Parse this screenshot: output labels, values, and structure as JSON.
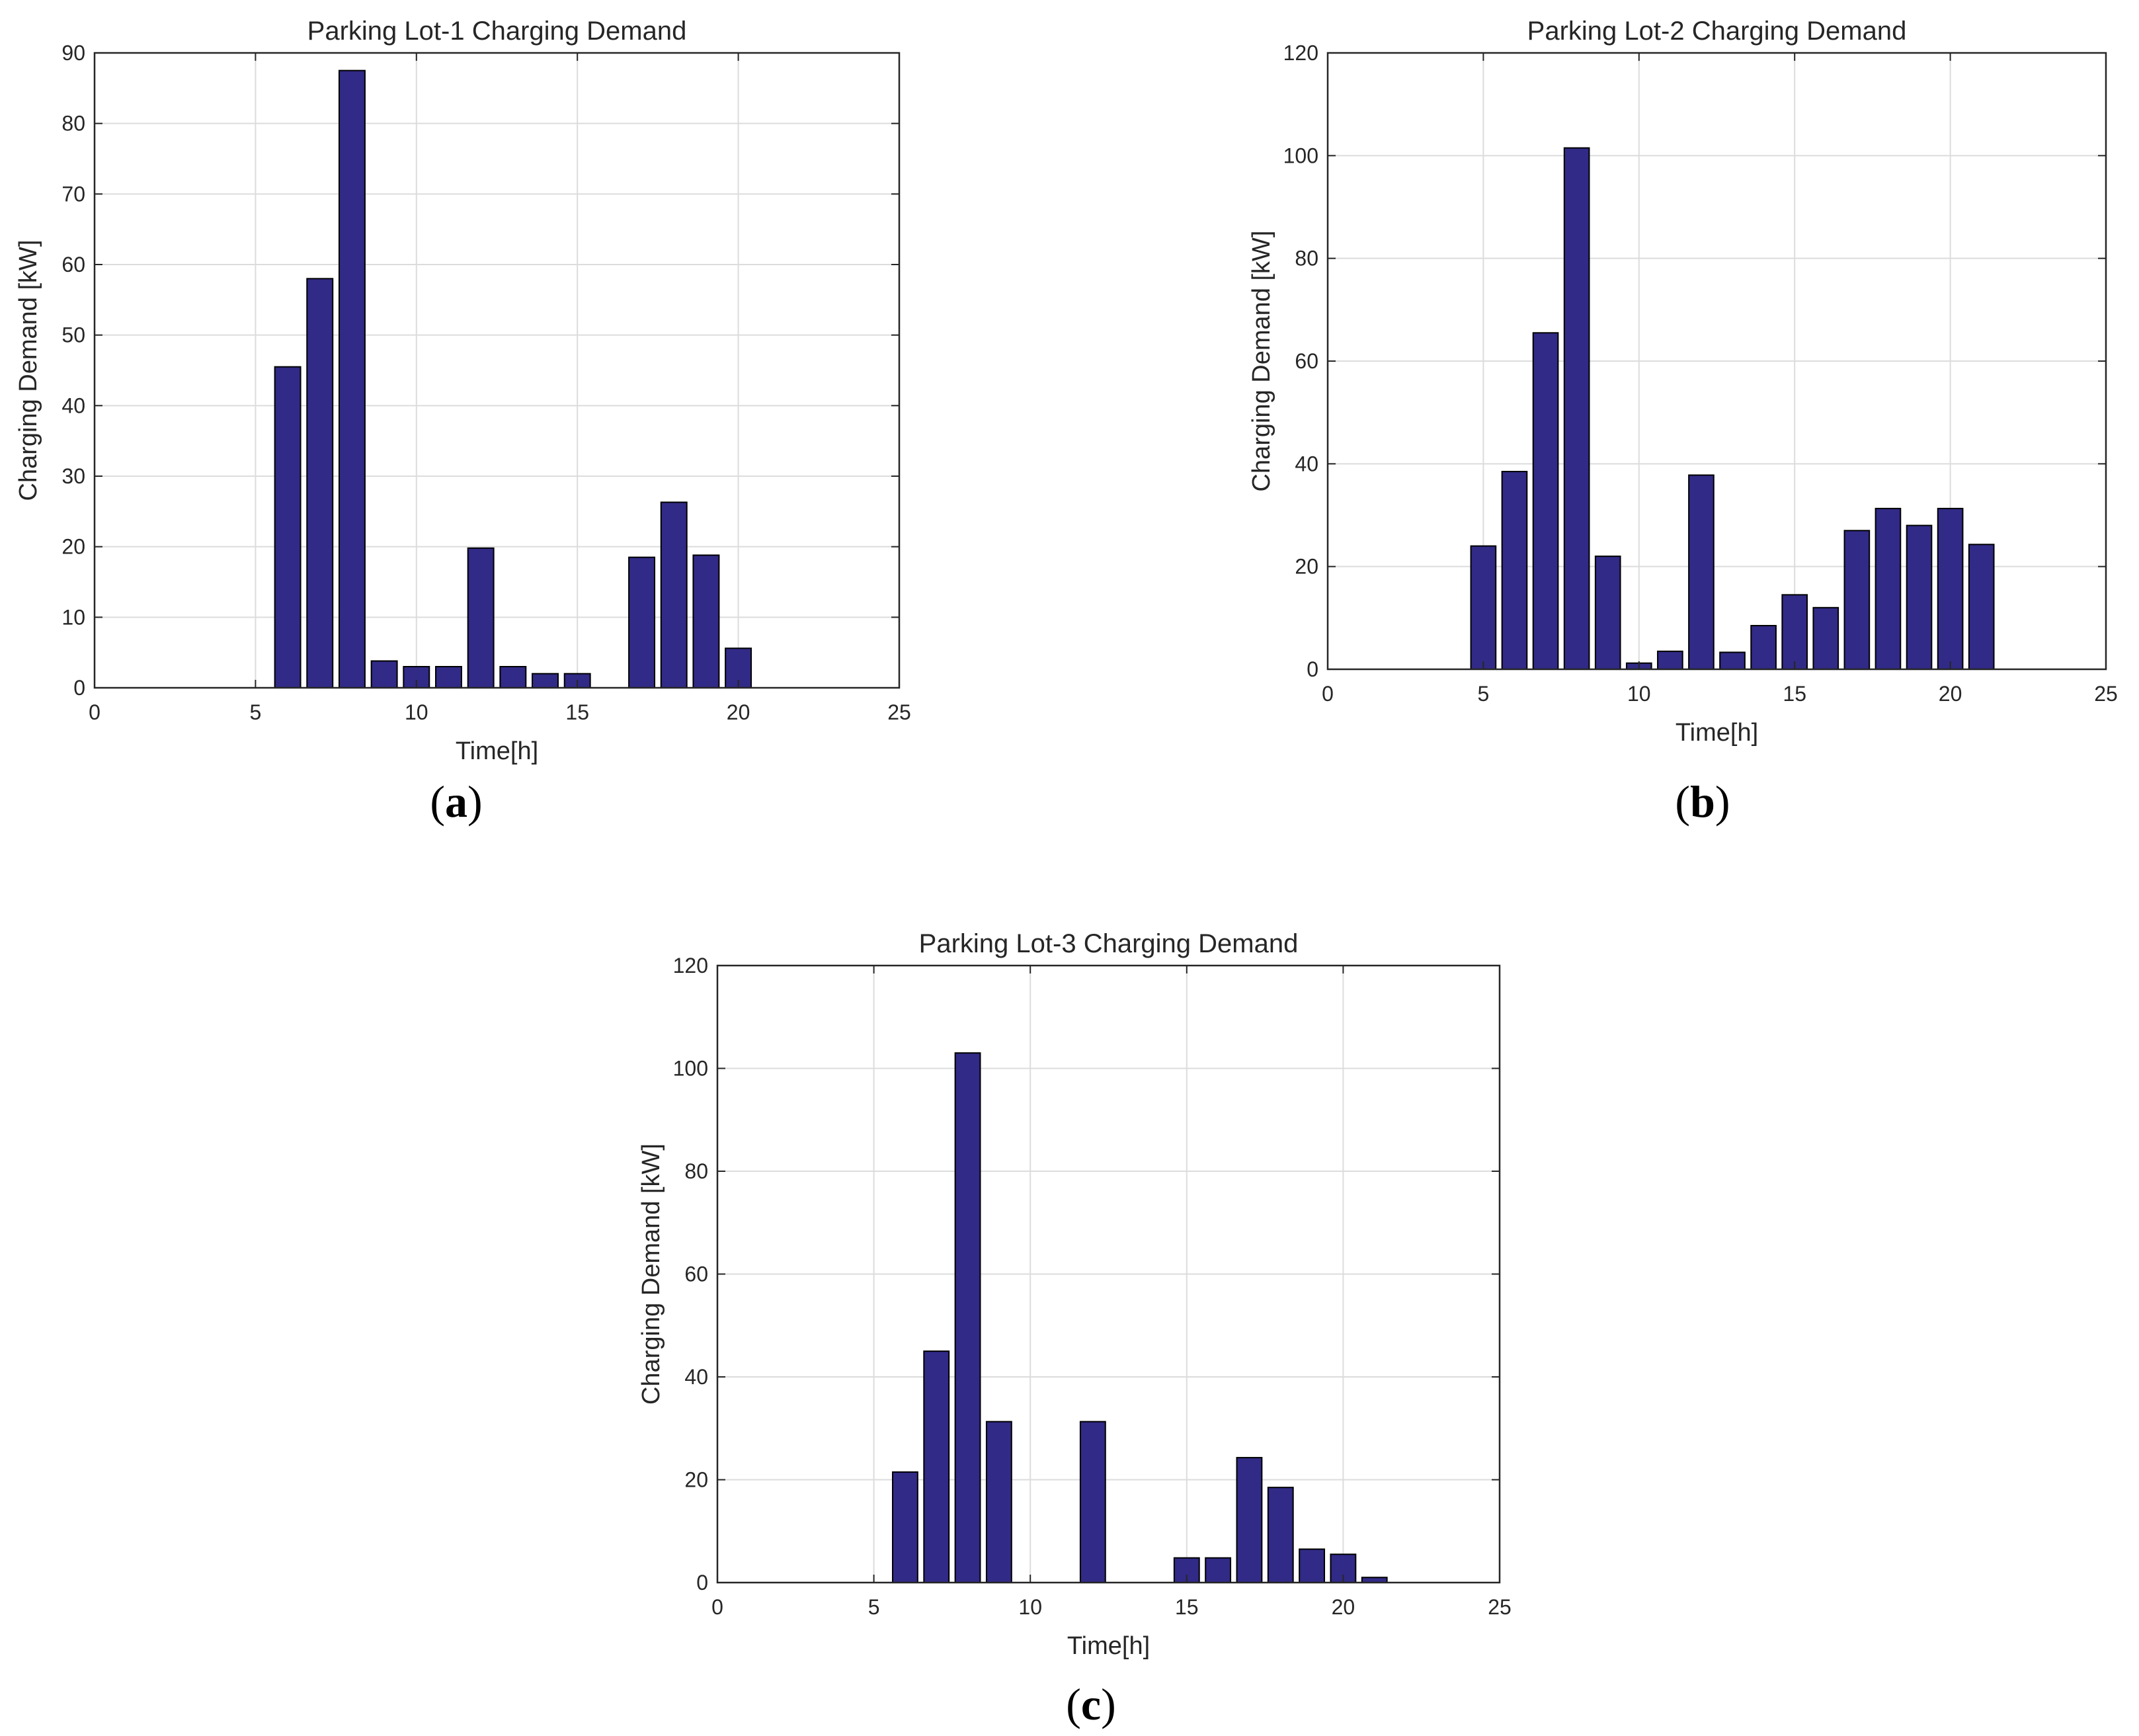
{
  "figure": {
    "captions": [
      "a",
      "b",
      "c"
    ],
    "caption_open": "(",
    "caption_close": ")"
  },
  "colors": {
    "bar_fill": "#312a86",
    "bar_edge": "#000000",
    "grid": "#dcdcdc",
    "axis": "#262626"
  },
  "chart_data": [
    {
      "type": "bar",
      "title": "Parking Lot-1 Charging Demand",
      "xlabel": "Time[h]",
      "ylabel": "Charging Demand [kW]",
      "xlim": [
        0,
        25
      ],
      "ylim": [
        0,
        90
      ],
      "xticks": [
        0,
        5,
        10,
        15,
        20,
        25
      ],
      "yticks": [
        0,
        10,
        20,
        30,
        40,
        50,
        60,
        70,
        80,
        90
      ],
      "grid": true,
      "x": [
        6,
        7,
        8,
        9,
        10,
        11,
        12,
        13,
        14,
        15,
        17,
        18,
        19,
        20
      ],
      "values": [
        45.5,
        58,
        87.5,
        3.8,
        3,
        3,
        19.8,
        3,
        2,
        2,
        18.5,
        26.3,
        18.8,
        5.6
      ]
    },
    {
      "type": "bar",
      "title": "Parking Lot-2 Charging Demand",
      "xlabel": "Time[h]",
      "ylabel": "Charging Demand [kW]",
      "xlim": [
        0,
        25
      ],
      "ylim": [
        0,
        120
      ],
      "xticks": [
        0,
        5,
        10,
        15,
        20,
        25
      ],
      "yticks": [
        0,
        20,
        40,
        60,
        80,
        100,
        120
      ],
      "grid": true,
      "x": [
        5,
        6,
        7,
        8,
        9,
        10,
        11,
        12,
        13,
        14,
        15,
        16,
        17,
        18,
        19,
        20,
        21
      ],
      "values": [
        24,
        38.5,
        65.5,
        101.5,
        22,
        1.2,
        3.5,
        37.8,
        3.3,
        8.5,
        14.5,
        12,
        27,
        31.3,
        28,
        31.3,
        24.3
      ]
    },
    {
      "type": "bar",
      "title": "Parking Lot-3 Charging Demand",
      "xlabel": "Time[h]",
      "ylabel": "Charging Demand [kW]",
      "xlim": [
        0,
        25
      ],
      "ylim": [
        0,
        120
      ],
      "xticks": [
        0,
        5,
        10,
        15,
        20,
        25
      ],
      "yticks": [
        0,
        20,
        40,
        60,
        80,
        100,
        120
      ],
      "grid": true,
      "x": [
        6,
        7,
        8,
        9,
        12,
        15,
        16,
        17,
        18,
        19,
        20,
        21
      ],
      "values": [
        21.5,
        45,
        103,
        31.3,
        31.3,
        4.8,
        4.8,
        24.3,
        18.5,
        6.5,
        5.5,
        1
      ]
    }
  ]
}
